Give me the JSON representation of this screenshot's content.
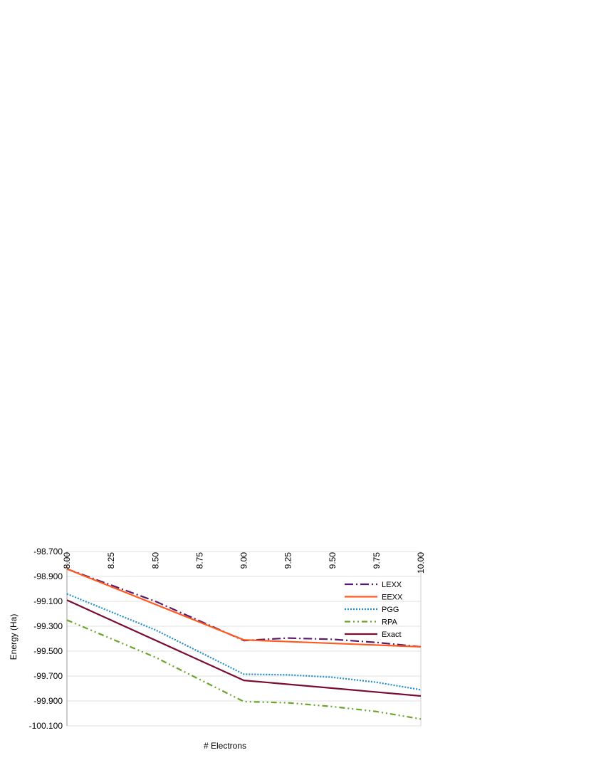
{
  "chart_data": {
    "type": "line",
    "title": "",
    "xlabel": "# Electrons",
    "ylabel": "Energy (Ha)",
    "xlim": [
      8.0,
      10.0
    ],
    "ylim": [
      -100.1,
      -98.7
    ],
    "x_ticks": [
      "8.00",
      "8.25",
      "8.50",
      "8.75",
      "9.00",
      "9.25",
      "9.50",
      "9.75",
      "10.00"
    ],
    "y_ticks": [
      "-98.700",
      "-98.900",
      "-99.100",
      "-99.300",
      "-99.500",
      "-99.700",
      "-99.900",
      "-100.100"
    ],
    "grid": true,
    "legend_position": "right",
    "series": [
      {
        "name": "LEXX",
        "color": "#5b1a6e",
        "dash": "long-dash-dot",
        "points": [
          [
            8.0,
            -98.84
          ],
          [
            8.5,
            -99.1
          ],
          [
            9.0,
            -99.415
          ],
          [
            9.25,
            -99.395
          ],
          [
            9.5,
            -99.405
          ],
          [
            9.75,
            -99.43
          ],
          [
            10.0,
            -99.465
          ]
        ]
      },
      {
        "name": "EEXX",
        "color": "#ff5a1f",
        "dash": "solid",
        "points": [
          [
            8.0,
            -98.84
          ],
          [
            9.0,
            -99.41
          ],
          [
            10.0,
            -99.465
          ]
        ]
      },
      {
        "name": "PGG",
        "color": "#1f8fd0",
        "dash": "dotted",
        "points": [
          [
            8.0,
            -99.04
          ],
          [
            8.5,
            -99.33
          ],
          [
            9.0,
            -99.685
          ],
          [
            9.25,
            -99.69
          ],
          [
            9.5,
            -99.71
          ],
          [
            9.75,
            -99.75
          ],
          [
            10.0,
            -99.81
          ]
        ]
      },
      {
        "name": "RPA",
        "color": "#6aa42a",
        "dash": "dash-dot-dot",
        "points": [
          [
            8.0,
            -99.25
          ],
          [
            8.5,
            -99.55
          ],
          [
            9.0,
            -99.905
          ],
          [
            9.25,
            -99.915
          ],
          [
            9.5,
            -99.945
          ],
          [
            9.75,
            -99.985
          ],
          [
            10.0,
            -100.045
          ]
        ]
      },
      {
        "name": "Exact",
        "color": "#7a0b32",
        "dash": "solid",
        "points": [
          [
            8.0,
            -99.09
          ],
          [
            9.0,
            -99.735
          ],
          [
            10.0,
            -99.86
          ]
        ]
      }
    ]
  }
}
